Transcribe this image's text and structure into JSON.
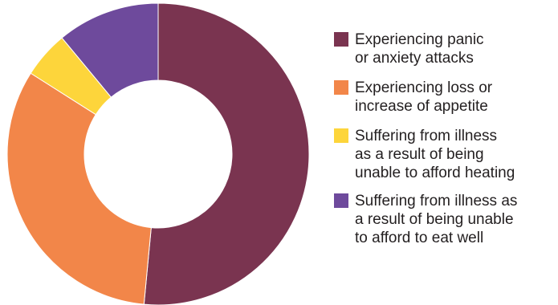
{
  "chart_data": {
    "type": "pie",
    "donut": true,
    "start_angle_deg": 0,
    "direction": "clockwise",
    "slices": [
      {
        "label": "Experiencing panic\nor anxiety attacks",
        "value": 51.5,
        "color": "#7a3450"
      },
      {
        "label": "Experiencing loss or\nincrease of appetite",
        "value": 32.5,
        "color": "#f28649"
      },
      {
        "label": "Suffering from illness\nas a result of being\nunable to afford heating",
        "value": 5.0,
        "color": "#fdd53b"
      },
      {
        "label": "Suffering from illness as\na result of being unable\nto afford to eat well",
        "value": 11.0,
        "color": "#6e4a9c"
      }
    ],
    "legend_position": "right"
  }
}
